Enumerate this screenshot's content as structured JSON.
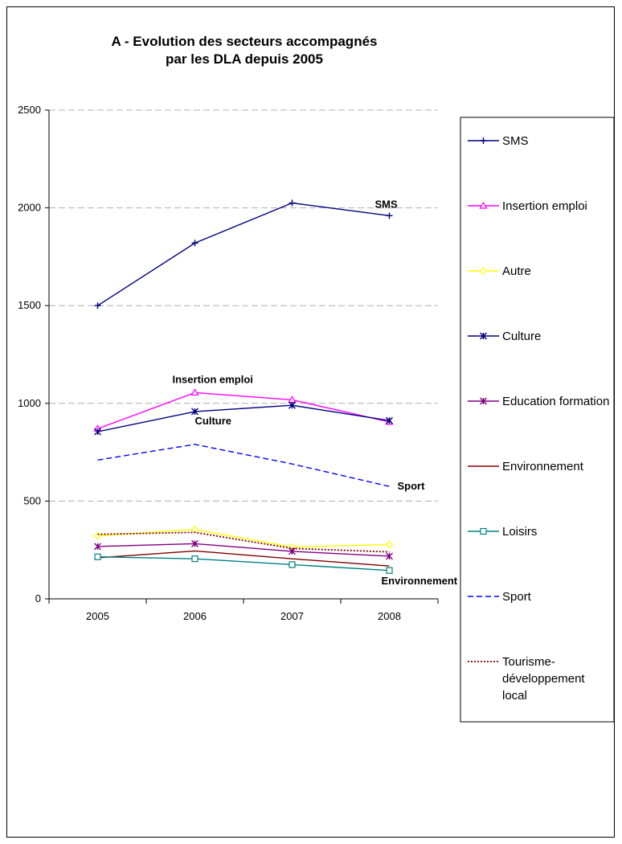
{
  "chart_data": {
    "type": "line",
    "title": "A - Evolution des secteurs accompagnés par les DLA depuis 2005",
    "title_lines": [
      "A - Evolution des secteurs accompagnés",
      "par les DLA depuis 2005"
    ],
    "xlabel": "",
    "ylabel": "",
    "categories": [
      "2005",
      "2006",
      "2007",
      "2008"
    ],
    "ylim": [
      0,
      2500
    ],
    "yticks": [
      0,
      500,
      1000,
      1500,
      2000,
      2500
    ],
    "grid": "horizontal dashed",
    "legend_position": "right",
    "series": [
      {
        "name": "SMS",
        "values": [
          1500,
          1820,
          2025,
          1960
        ],
        "color": "#000080",
        "marker": "plus",
        "dash": "solid"
      },
      {
        "name": "Insertion emploi",
        "values": [
          870,
          1055,
          1018,
          905
        ],
        "color": "#ff00ff",
        "marker": "triangle",
        "dash": "solid"
      },
      {
        "name": "Autre",
        "values": [
          322,
          355,
          265,
          278
        ],
        "color": "#ffff00",
        "marker": "diamond",
        "dash": "solid"
      },
      {
        "name": "Culture",
        "values": [
          855,
          958,
          990,
          912
        ],
        "color": "#000080",
        "marker": "asterisk",
        "dash": "solid"
      },
      {
        "name": "Education formation",
        "values": [
          268,
          282,
          243,
          218
        ],
        "color": "#800080",
        "marker": "asterisk",
        "dash": "solid"
      },
      {
        "name": "Environnement",
        "values": [
          210,
          245,
          205,
          168
        ],
        "color": "#800000",
        "marker": "none",
        "dash": "solid"
      },
      {
        "name": "Loisirs",
        "values": [
          215,
          205,
          175,
          145
        ],
        "color": "#008080",
        "marker": "square",
        "dash": "solid"
      },
      {
        "name": "Sport",
        "values": [
          710,
          790,
          690,
          575
        ],
        "color": "#0000ff",
        "marker": "none",
        "dash": "dashed"
      },
      {
        "name": "Tourisme-développement local",
        "legend_lines": [
          "Tourisme-",
          "développement",
          "local"
        ],
        "values": [
          330,
          340,
          258,
          240
        ],
        "color": "#800000",
        "marker": "none",
        "dash": "dotted"
      }
    ],
    "annotations": [
      {
        "text": "SMS",
        "series": "SMS",
        "category": "2008"
      },
      {
        "text": "Insertion emploi",
        "series": "Insertion emploi",
        "category": "2006"
      },
      {
        "text": "Culture",
        "series": "Culture",
        "category": "2006"
      },
      {
        "text": "Sport",
        "series": "Sport",
        "category": "2008"
      },
      {
        "text": "Environnement",
        "series": "Environnement",
        "category": "2008"
      }
    ]
  }
}
